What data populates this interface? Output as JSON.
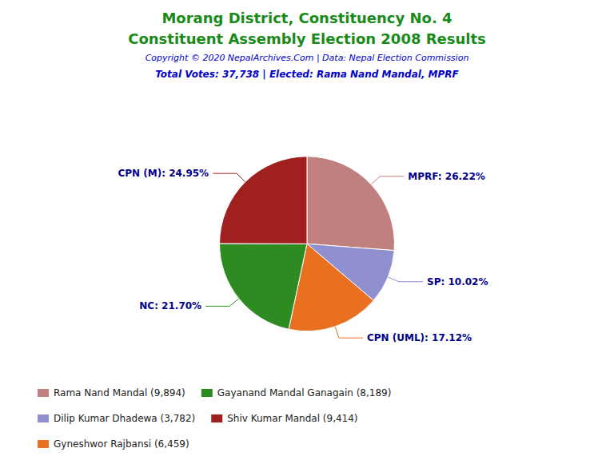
{
  "chart_data": {
    "type": "pie",
    "title": "Morang District, Constituency No. 4",
    "subtitle": "Constituent Assembly Election 2008 Results",
    "title_color": "#1a8a1a",
    "annotations": [
      {
        "text": "Copyright © 2020 NepalArchives.Com | Data: Nepal Election Commission",
        "color": "#0000CC"
      },
      {
        "text": "Total Votes: 37,738 | Elected: Rama Nand Mandal, MPRF",
        "color": "#0000CC"
      }
    ],
    "categories": [
      "MPRF",
      "SP",
      "CPN (UML)",
      "NC",
      "CPN (M)"
    ],
    "values": [
      26.22,
      10.02,
      17.12,
      21.7,
      24.95
    ],
    "value_labels": [
      "MPRF: 26.22%",
      "SP: 10.02%",
      "CPN (UML): 17.12%",
      "NC: 21.70%",
      "CPN (M): 24.95%"
    ],
    "colors": [
      "#C08080",
      "#9090D0",
      "#E87020",
      "#2E8B22",
      "#A02020"
    ],
    "data_labels": true,
    "label_color": "#00008B",
    "legend": "lower left",
    "legend_entries": [
      {
        "label": "Rama Nand Mandal (9,894)",
        "color": "#C08080"
      },
      {
        "label": "Gayanand Mandal Ganagain (8,189)",
        "color": "#2E8B22"
      },
      {
        "label": "Dilip Kumar Dhadewa (3,782)",
        "color": "#9090D0"
      },
      {
        "label": "Shiv Kumar Mandal (9,414)",
        "color": "#A02020"
      },
      {
        "label": "Gyneshwor Rajbansi (6,459)",
        "color": "#E87020"
      }
    ]
  }
}
